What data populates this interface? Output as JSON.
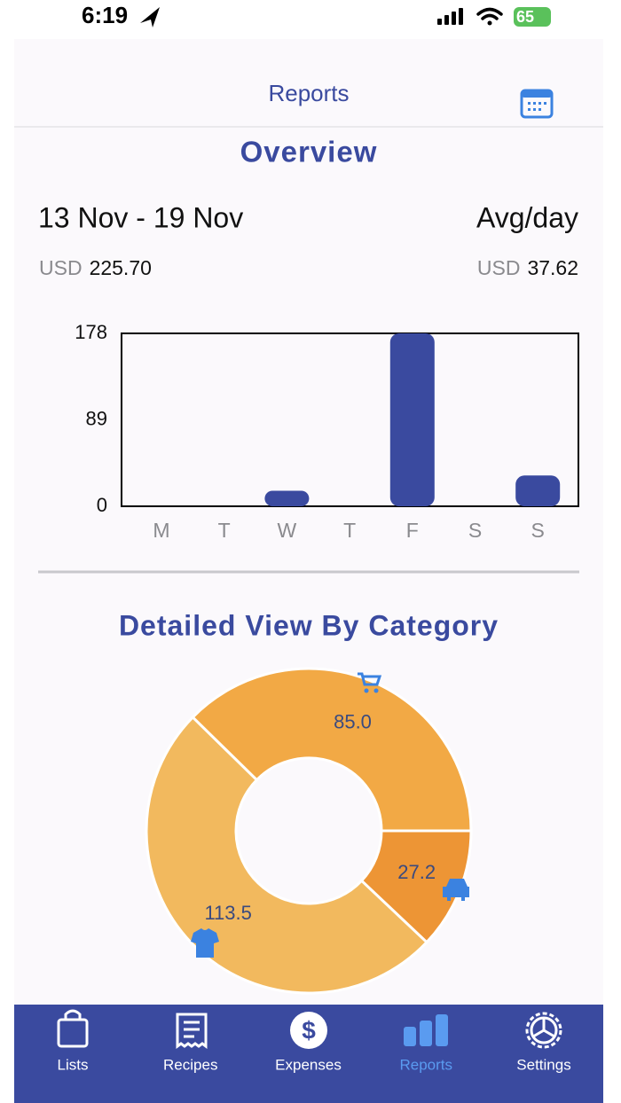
{
  "status_bar": {
    "time": "6:19",
    "battery": "65"
  },
  "header": {
    "title": "Reports"
  },
  "overview": {
    "title": "Overview",
    "date_range": "13 Nov - 19 Nov",
    "avg_label": "Avg/day",
    "total_currency": "USD",
    "total": "225.70",
    "avg_currency": "USD",
    "avg": "37.62"
  },
  "category_title": "Detailed View By Category",
  "chart_data": [
    {
      "type": "bar",
      "categories": [
        "M",
        "T",
        "W",
        "T",
        "F",
        "S",
        "S"
      ],
      "values": [
        0,
        0,
        16,
        0,
        178,
        0,
        31.7
      ],
      "color": "#3a4a9f",
      "ylim": [
        0,
        178
      ],
      "yticks": [
        0,
        89,
        178
      ]
    },
    {
      "type": "donut",
      "values": [
        27.2,
        113.5,
        85.0
      ],
      "value_labels": [
        "27.2",
        "113.5",
        "85.0"
      ],
      "colors": [
        "#ed9535",
        "#f2b95e",
        "#f2a945"
      ]
    }
  ],
  "tab_bar": {
    "items": [
      "Lists",
      "Recipes",
      "Expenses",
      "Reports",
      "Settings"
    ],
    "active_index": 3,
    "color": "#ffffff",
    "active_color": "#5a9bf0"
  }
}
